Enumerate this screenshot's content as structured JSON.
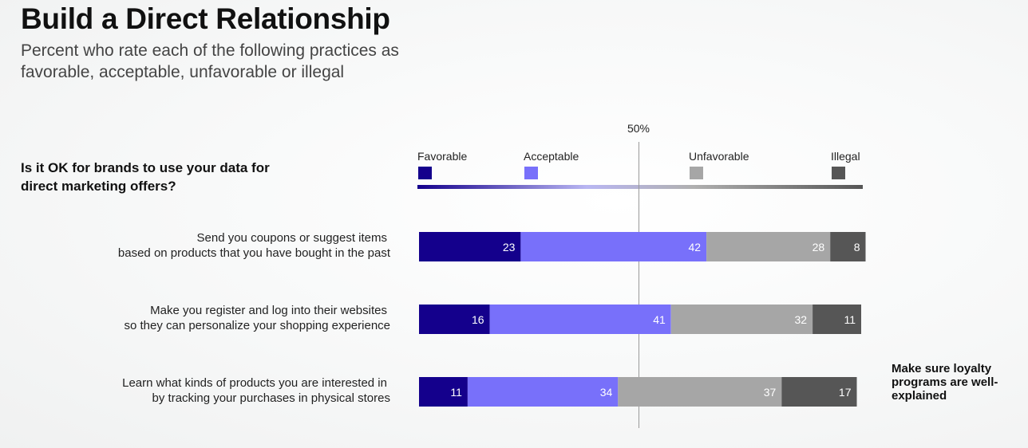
{
  "header": {
    "title": "Build a Direct Relationship",
    "subtitle": "Percent who rate each of the following practices as favorable, acceptable, unfavorable or illegal"
  },
  "question": "Is it OK for brands to use your data for direct marketing offers?",
  "note": "Make sure loyalty programs are well-explained",
  "chart_data": {
    "type": "bar",
    "orientation": "horizontal",
    "stacked": true,
    "xlim": [
      0,
      100
    ],
    "reference_line": {
      "value": 50,
      "label": "50%"
    },
    "categories": [
      "Send you coupons or suggest items based on products that you have bought in the past",
      "Make you register and log into their websites so they can personalize your shopping experience",
      "Learn what kinds of products you are interested in by tracking your purchases in physical stores"
    ],
    "category_lines": [
      [
        "Send you coupons or suggest items",
        "based on products that you have bought in the past"
      ],
      [
        "Make you register and log into their websites",
        "so they can personalize your shopping experience"
      ],
      [
        "Learn what kinds of products you are interested in",
        "by tracking your purchases in physical stores"
      ]
    ],
    "series": [
      {
        "name": "Favorable",
        "color": "#14008c",
        "values": [
          23,
          16,
          11
        ]
      },
      {
        "name": "Acceptable",
        "color": "#7870fa",
        "values": [
          42,
          41,
          34
        ]
      },
      {
        "name": "Unfavorable",
        "color": "#a6a6a6",
        "values": [
          28,
          32,
          37
        ]
      },
      {
        "name": "Illegal",
        "color": "#565656",
        "values": [
          8,
          11,
          17
        ]
      }
    ],
    "legend_position": "top",
    "data_labels": true,
    "grid": false
  }
}
